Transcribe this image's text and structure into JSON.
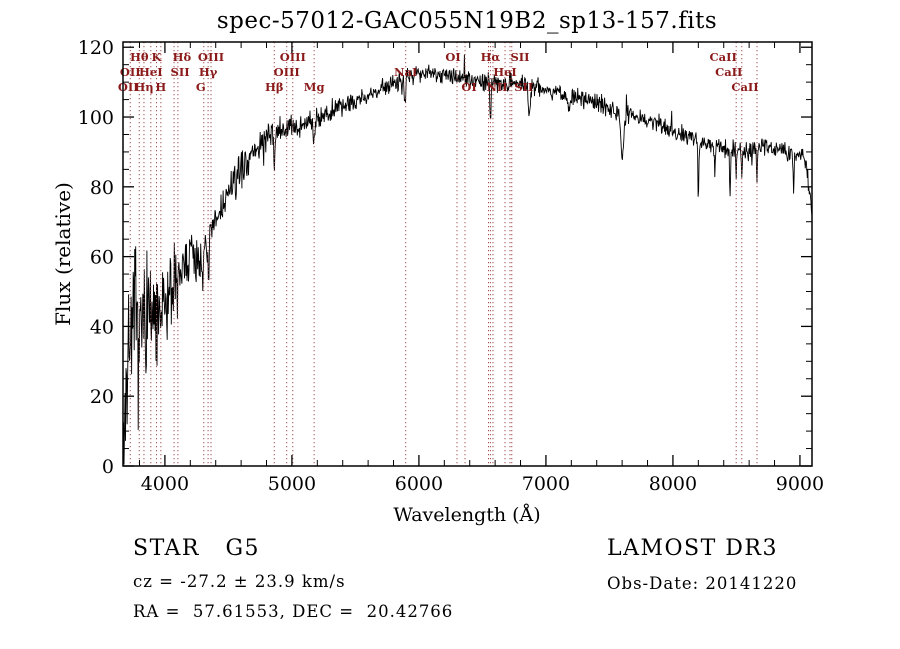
{
  "title": "spec-57012-GAC055N19B2_sp13-157.fits",
  "annotations": {
    "classification": "STAR   G5",
    "survey": "LAMOST DR3",
    "cz": "cz = -27.2 ± 23.9 km/s",
    "obs_date": "Obs-Date: 20141220",
    "coords": "RA =  57.61553, DEC =  20.42766"
  },
  "chart_data": {
    "type": "line",
    "title": "spec-57012-GAC055N19B2_sp13-157.fits",
    "xlabel": "Wavelength (Å)",
    "ylabel": "Flux (relative)",
    "xlim": [
      3670,
      9095
    ],
    "ylim": [
      0,
      121.5
    ],
    "x_ticks": [
      4000,
      5000,
      6000,
      7000,
      8000,
      9000
    ],
    "y_ticks": [
      0,
      20,
      40,
      60,
      80,
      100,
      120
    ],
    "x_minor_step": 200,
    "y_minor_step": 5,
    "grid": false,
    "legend": "none",
    "line_color": "#000000",
    "marker_color": "#a14f4f",
    "label_color": "#8b1a1a",
    "continuum": [
      [
        3670,
        4
      ],
      [
        3685,
        12
      ],
      [
        3700,
        26
      ],
      [
        3715,
        34
      ],
      [
        3730,
        38
      ],
      [
        3760,
        42
      ],
      [
        3790,
        37
      ],
      [
        3820,
        40
      ],
      [
        3850,
        45
      ],
      [
        3880,
        44
      ],
      [
        3910,
        42
      ],
      [
        3940,
        40
      ],
      [
        3970,
        42
      ],
      [
        4000,
        46
      ],
      [
        4040,
        51
      ],
      [
        4080,
        53
      ],
      [
        4120,
        55
      ],
      [
        4160,
        58
      ],
      [
        4200,
        60
      ],
      [
        4250,
        60
      ],
      [
        4300,
        59
      ],
      [
        4350,
        64
      ],
      [
        4400,
        70
      ],
      [
        4450,
        74
      ],
      [
        4500,
        78
      ],
      [
        4600,
        85
      ],
      [
        4700,
        90
      ],
      [
        4800,
        94
      ],
      [
        4900,
        96
      ],
      [
        5000,
        97
      ],
      [
        5100,
        98
      ],
      [
        5200,
        100
      ],
      [
        5300,
        101
      ],
      [
        5400,
        103
      ],
      [
        5500,
        105
      ],
      [
        5600,
        106
      ],
      [
        5700,
        108
      ],
      [
        5800,
        110
      ],
      [
        5900,
        111
      ],
      [
        6000,
        113
      ],
      [
        6100,
        113
      ],
      [
        6200,
        112
      ],
      [
        6300,
        111
      ],
      [
        6400,
        111
      ],
      [
        6500,
        110
      ],
      [
        6600,
        110
      ],
      [
        6700,
        110
      ],
      [
        6800,
        110
      ],
      [
        6900,
        109
      ],
      [
        7000,
        108
      ],
      [
        7100,
        107
      ],
      [
        7200,
        106
      ],
      [
        7300,
        105
      ],
      [
        7400,
        104
      ],
      [
        7500,
        103
      ],
      [
        7600,
        101
      ],
      [
        7700,
        100
      ],
      [
        7800,
        99
      ],
      [
        7900,
        98
      ],
      [
        8000,
        96
      ],
      [
        8100,
        95
      ],
      [
        8200,
        93
      ],
      [
        8300,
        92
      ],
      [
        8400,
        91
      ],
      [
        8500,
        91
      ],
      [
        8600,
        90
      ],
      [
        8700,
        92
      ],
      [
        8800,
        91
      ],
      [
        8900,
        90
      ],
      [
        9000,
        90
      ],
      [
        9050,
        86
      ],
      [
        9095,
        72
      ]
    ],
    "absorption": [
      [
        4101,
        9,
        6
      ],
      [
        4340,
        7,
        6
      ],
      [
        4861,
        9,
        6
      ],
      [
        5175,
        5,
        10
      ],
      [
        5890,
        6,
        7
      ],
      [
        6563,
        10,
        7
      ],
      [
        6870,
        9,
        12
      ],
      [
        7180,
        5,
        12
      ],
      [
        7600,
        13,
        14
      ],
      [
        8200,
        17,
        5
      ],
      [
        8330,
        8,
        5
      ],
      [
        8450,
        15,
        5
      ],
      [
        8498,
        7,
        5
      ],
      [
        8542,
        8,
        5
      ],
      [
        8662,
        8,
        5
      ],
      [
        8950,
        11,
        5
      ]
    ],
    "noise": {
      "seed": 7,
      "step": 4,
      "blue_amp": 26,
      "decay": 420,
      "red_amp": 3.2,
      "spike_prob": 0.012,
      "spike_mult": 2.6
    },
    "markers": [
      3727,
      3798,
      3835,
      3889,
      3934,
      3968,
      4072,
      4102,
      4306,
      4340,
      4363,
      4861,
      4959,
      5007,
      5175,
      5896,
      6300,
      6363,
      6548,
      6563,
      6583,
      6678,
      6717,
      6731,
      8498,
      8542,
      8662
    ],
    "marker_labels": [
      {
        "text": "Hθ",
        "wl": 3798,
        "row": 0
      },
      {
        "text": "K",
        "wl": 3934,
        "row": 0
      },
      {
        "text": "Hδ",
        "wl": 4102,
        "row": 0,
        "dx": 4
      },
      {
        "text": "OIII",
        "wl": 4363,
        "row": 0
      },
      {
        "text": "OIII",
        "wl": 5007,
        "row": 0
      },
      {
        "text": "OI",
        "wl": 6300,
        "row": 0,
        "dx": -4
      },
      {
        "text": "Hα",
        "wl": 6563,
        "row": 0
      },
      {
        "text": "SII",
        "wl": 6717,
        "row": 0,
        "dx": 10
      },
      {
        "text": "CaII",
        "wl": 8498,
        "row": 0,
        "dx": -13
      },
      {
        "text": "OII",
        "wl": 3727,
        "row": 1
      },
      {
        "text": "HeI",
        "wl": 3889,
        "row": 1
      },
      {
        "text": "SII",
        "wl": 4072,
        "row": 1,
        "dx": 6
      },
      {
        "text": "Hγ",
        "wl": 4340,
        "row": 1
      },
      {
        "text": "OIII",
        "wl": 4959,
        "row": 1
      },
      {
        "text": "NaI",
        "wl": 5896,
        "row": 1
      },
      {
        "text": "HeI",
        "wl": 6678,
        "row": 1
      },
      {
        "text": "CaII",
        "wl": 8542,
        "row": 1,
        "dx": -13
      },
      {
        "text": "OII",
        "wl": 3727,
        "row": 2,
        "dx": -2
      },
      {
        "text": "Hη",
        "wl": 3835,
        "row": 2
      },
      {
        "text": "H",
        "wl": 3968,
        "row": 2
      },
      {
        "text": "G",
        "wl": 4306,
        "row": 2,
        "dx": -3
      },
      {
        "text": "Hβ",
        "wl": 4861,
        "row": 2
      },
      {
        "text": "Mg",
        "wl": 5175,
        "row": 2
      },
      {
        "text": "OI",
        "wl": 6363,
        "row": 2,
        "dx": 4
      },
      {
        "text": "NII",
        "wl": 6583,
        "row": 2,
        "dx": 4
      },
      {
        "text": "SII",
        "wl": 6731,
        "row": 2,
        "dx": 12
      },
      {
        "text": "CaII",
        "wl": 8662,
        "row": 2,
        "dx": -12
      }
    ]
  }
}
